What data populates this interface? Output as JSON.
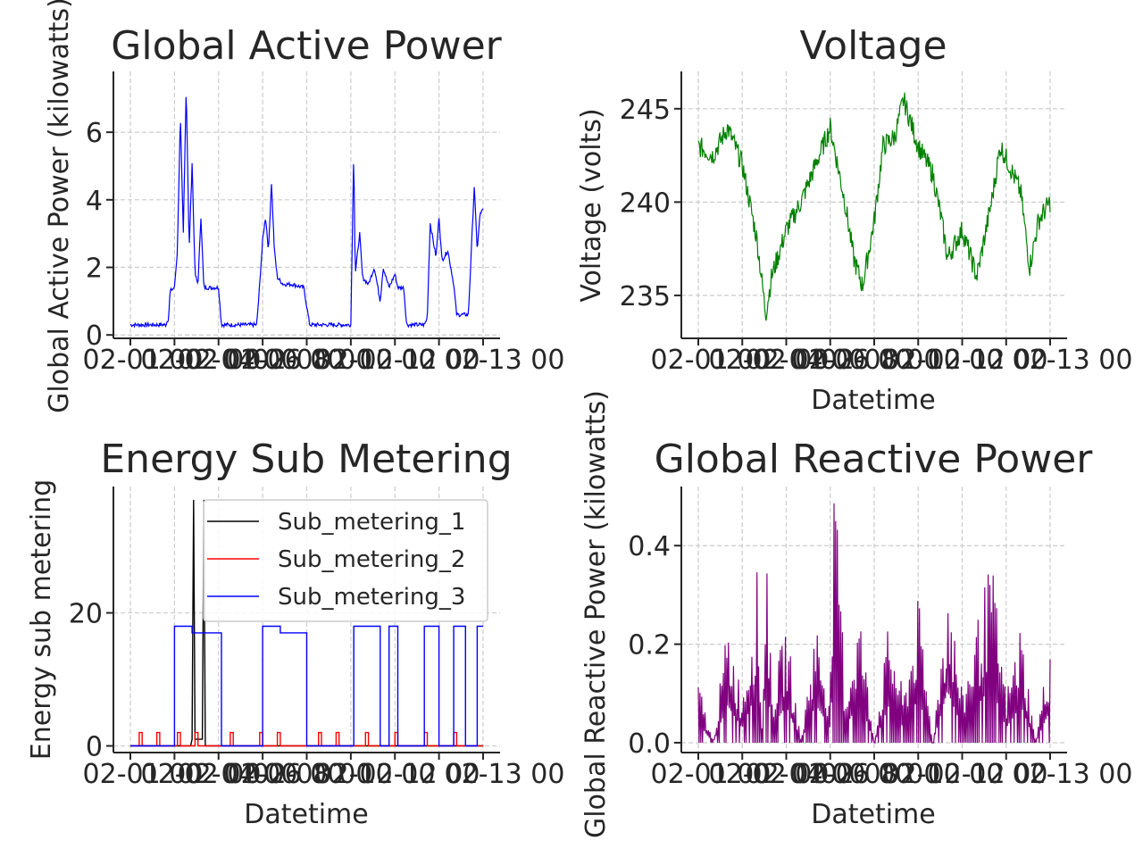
{
  "figure": {
    "background": "#ffffff"
  },
  "chart_data": [
    {
      "id": "gap",
      "type": "line",
      "title": "Global Active Power",
      "xlabel": "",
      "ylabel": "Global Active Power (kilowatts)",
      "x_start": "02-01 00",
      "x_end": "02-13 00",
      "ylim": [
        -0.1,
        7.8
      ],
      "yticks": [
        0,
        2,
        4,
        6
      ],
      "xtick_labels": [
        "02-01 00",
        "02-02 00",
        "02-04 00",
        "02-06 00",
        "02-08 00",
        "02-10 00",
        "02-12 00",
        "02-13 00"
      ],
      "grid": true,
      "series": [
        {
          "color": "#0000ff",
          "keypoints": [
            [
              0,
              0.3
            ],
            [
              1.2,
              0.3
            ],
            [
              1.3,
              0.5
            ],
            [
              1.35,
              1.3
            ],
            [
              1.5,
              1.4
            ],
            [
              1.6,
              2.5
            ],
            [
              1.7,
              6.5
            ],
            [
              1.8,
              3.0
            ],
            [
              1.9,
              7.4
            ],
            [
              2.0,
              2.5
            ],
            [
              2.1,
              5.1
            ],
            [
              2.2,
              1.8
            ],
            [
              2.3,
              1.5
            ],
            [
              2.4,
              3.5
            ],
            [
              2.5,
              1.4
            ],
            [
              3.0,
              1.4
            ],
            [
              3.1,
              0.3
            ],
            [
              4.3,
              0.3
            ],
            [
              4.4,
              1.5
            ],
            [
              4.5,
              2.8
            ],
            [
              4.6,
              3.5
            ],
            [
              4.7,
              2.5
            ],
            [
              4.8,
              4.5
            ],
            [
              4.9,
              2.5
            ],
            [
              5.0,
              1.7
            ],
            [
              5.2,
              1.5
            ],
            [
              5.5,
              1.5
            ],
            [
              5.9,
              1.4
            ],
            [
              6.1,
              0.3
            ],
            [
              7.5,
              0.3
            ],
            [
              7.6,
              5.5
            ],
            [
              7.65,
              1.8
            ],
            [
              7.8,
              3.0
            ],
            [
              7.9,
              1.7
            ],
            [
              8.1,
              1.5
            ],
            [
              8.3,
              2.0
            ],
            [
              8.5,
              1.0
            ],
            [
              8.6,
              2.0
            ],
            [
              8.8,
              1.4
            ],
            [
              9.0,
              1.8
            ],
            [
              9.1,
              1.4
            ],
            [
              9.3,
              1.4
            ],
            [
              9.4,
              0.3
            ],
            [
              10.0,
              0.3
            ],
            [
              10.1,
              0.5
            ],
            [
              10.2,
              3.3
            ],
            [
              10.4,
              2.3
            ],
            [
              10.5,
              3.5
            ],
            [
              10.6,
              2.2
            ],
            [
              10.8,
              2.5
            ],
            [
              11.0,
              1.5
            ],
            [
              11.1,
              0.6
            ],
            [
              11.5,
              0.6
            ],
            [
              11.7,
              4.4
            ],
            [
              11.8,
              2.5
            ],
            [
              11.9,
              3.6
            ],
            [
              12.0,
              3.7
            ]
          ]
        }
      ]
    },
    {
      "id": "voltage",
      "type": "line",
      "title": "Voltage",
      "xlabel": "Datetime",
      "ylabel": "Voltage (volts)",
      "x_start": "02-01 00",
      "x_end": "02-13 00",
      "ylim": [
        232.7,
        247.0
      ],
      "yticks": [
        235,
        240,
        245
      ],
      "xtick_labels": [
        "02-01 00",
        "02-02 00",
        "02-04 00",
        "02-06 00",
        "02-08 00",
        "02-10 00",
        "02-12 00",
        "02-13 00"
      ],
      "grid": true,
      "series": [
        {
          "color": "#008000",
          "keypoints": [
            [
              0,
              243.0
            ],
            [
              0.5,
              242.5
            ],
            [
              1.0,
              244.0
            ],
            [
              1.5,
              242.0
            ],
            [
              2.0,
              238.0
            ],
            [
              2.3,
              234.0
            ],
            [
              2.5,
              236.0
            ],
            [
              3.0,
              238.5
            ],
            [
              3.5,
              240.0
            ],
            [
              4.0,
              242.0
            ],
            [
              4.5,
              244.0
            ],
            [
              5.0,
              240.0
            ],
            [
              5.3,
              237.0
            ],
            [
              5.6,
              235.5
            ],
            [
              6.0,
              239.0
            ],
            [
              6.3,
              243.0
            ],
            [
              6.7,
              243.5
            ],
            [
              7.0,
              245.5
            ],
            [
              7.5,
              243.0
            ],
            [
              8.0,
              241.5
            ],
            [
              8.3,
              239.0
            ],
            [
              8.5,
              237.0
            ],
            [
              9.0,
              238.5
            ],
            [
              9.5,
              236.0
            ],
            [
              10.0,
              240.0
            ],
            [
              10.3,
              243.0
            ],
            [
              10.6,
              242.0
            ],
            [
              11.0,
              240.5
            ],
            [
              11.3,
              236.5
            ],
            [
              11.6,
              239.0
            ],
            [
              12.0,
              240.0
            ]
          ]
        }
      ]
    },
    {
      "id": "sub",
      "type": "line",
      "title": "Energy Sub Metering",
      "xlabel": "Datetime",
      "ylabel": "Energy sub metering",
      "x_start": "02-01 00",
      "x_end": "02-13 00",
      "ylim": [
        -1,
        39
      ],
      "yticks": [
        0,
        20
      ],
      "xtick_labels": [
        "02-01 00",
        "02-02 00",
        "02-04 00",
        "02-06 00",
        "02-08 00",
        "02-10 00",
        "02-12 00",
        "02-13 00"
      ],
      "grid": true,
      "legend": "upper right",
      "series": [
        {
          "name": "Sub_metering_1",
          "color": "#000000",
          "keypoints": [
            [
              0,
              0
            ],
            [
              2.05,
              0
            ],
            [
              2.1,
              1
            ],
            [
              2.15,
              37
            ],
            [
              2.2,
              1
            ],
            [
              2.45,
              1
            ],
            [
              2.5,
              37
            ],
            [
              2.55,
              0
            ],
            [
              12.0,
              0
            ]
          ]
        },
        {
          "name": "Sub_metering_2",
          "color": "#ff0000",
          "keypoints": [
            [
              0,
              0
            ],
            [
              0.3,
              0
            ],
            [
              0.3,
              2
            ],
            [
              0.4,
              2
            ],
            [
              0.4,
              0
            ],
            [
              0.9,
              0
            ],
            [
              0.9,
              2
            ],
            [
              1.0,
              2
            ],
            [
              1.0,
              0
            ],
            [
              1.6,
              0
            ],
            [
              1.6,
              2
            ],
            [
              1.7,
              2
            ],
            [
              1.7,
              0
            ],
            [
              2.2,
              0
            ],
            [
              2.2,
              2
            ],
            [
              2.3,
              2
            ],
            [
              2.3,
              0
            ],
            [
              3.4,
              0
            ],
            [
              3.4,
              2
            ],
            [
              3.5,
              2
            ],
            [
              3.5,
              0
            ],
            [
              4.4,
              0
            ],
            [
              4.4,
              2
            ],
            [
              4.5,
              2
            ],
            [
              4.5,
              0
            ],
            [
              5.0,
              0
            ],
            [
              5.0,
              2
            ],
            [
              5.1,
              2
            ],
            [
              5.1,
              0
            ],
            [
              6.4,
              0
            ],
            [
              6.4,
              2
            ],
            [
              6.5,
              2
            ],
            [
              6.5,
              0
            ],
            [
              7.0,
              0
            ],
            [
              7.0,
              2
            ],
            [
              7.1,
              2
            ],
            [
              7.1,
              0
            ],
            [
              8.0,
              0
            ],
            [
              8.0,
              2
            ],
            [
              8.1,
              2
            ],
            [
              8.1,
              0
            ],
            [
              9.0,
              0
            ],
            [
              9.0,
              2
            ],
            [
              9.1,
              2
            ],
            [
              9.1,
              0
            ],
            [
              10.0,
              0
            ],
            [
              10.0,
              2
            ],
            [
              10.1,
              2
            ],
            [
              10.1,
              0
            ],
            [
              11.0,
              0
            ],
            [
              11.0,
              2
            ],
            [
              11.1,
              2
            ],
            [
              11.1,
              0
            ],
            [
              12.0,
              0
            ]
          ]
        },
        {
          "name": "Sub_metering_3",
          "color": "#0000ff",
          "keypoints": [
            [
              0,
              0
            ],
            [
              1.5,
              0
            ],
            [
              1.5,
              18
            ],
            [
              2.1,
              18
            ],
            [
              2.1,
              17
            ],
            [
              3.1,
              17
            ],
            [
              3.1,
              0
            ],
            [
              4.5,
              0
            ],
            [
              4.5,
              18
            ],
            [
              5.1,
              18
            ],
            [
              5.1,
              17
            ],
            [
              6.0,
              17
            ],
            [
              6.0,
              0
            ],
            [
              7.6,
              0
            ],
            [
              7.6,
              18
            ],
            [
              8.5,
              18
            ],
            [
              8.5,
              0
            ],
            [
              8.8,
              0
            ],
            [
              8.8,
              18
            ],
            [
              9.1,
              18
            ],
            [
              9.1,
              0
            ],
            [
              10.0,
              0
            ],
            [
              10.0,
              18
            ],
            [
              10.5,
              18
            ],
            [
              10.5,
              0
            ],
            [
              11.0,
              0
            ],
            [
              11.0,
              18
            ],
            [
              11.4,
              18
            ],
            [
              11.4,
              0
            ],
            [
              11.8,
              0
            ],
            [
              11.8,
              18
            ],
            [
              12.0,
              18
            ]
          ]
        }
      ]
    },
    {
      "id": "grp",
      "type": "line",
      "title": "Global Reactive Power",
      "xlabel": "Datetime",
      "ylabel": "Global Reactive Power (kilowatts)",
      "x_start": "02-01 00",
      "x_end": "02-13 00",
      "ylim": [
        -0.02,
        0.52
      ],
      "yticks": [
        0.0,
        0.2,
        0.4
      ],
      "ytick_labels": [
        "0.0",
        "0.2",
        "0.4"
      ],
      "xtick_labels": [
        "02-01 00",
        "02-02 00",
        "02-04 00",
        "02-06 00",
        "02-08 00",
        "02-10 00",
        "02-12 00",
        "02-13 00"
      ],
      "grid": true,
      "series": [
        {
          "color": "#800080",
          "keypoints": [
            [
              0,
              0.13
            ],
            [
              0.5,
              0.0
            ],
            [
              1.0,
              0.25
            ],
            [
              1.5,
              0.1
            ],
            [
              2.0,
              0.35
            ],
            [
              2.2,
              0.0
            ],
            [
              2.3,
              0.5
            ],
            [
              2.5,
              0.1
            ],
            [
              3.0,
              0.25
            ],
            [
              3.5,
              0.0
            ],
            [
              4.0,
              0.26
            ],
            [
              4.5,
              0.1
            ],
            [
              4.6,
              0.5
            ],
            [
              4.8,
              0.43
            ],
            [
              5.0,
              0.1
            ],
            [
              5.5,
              0.28
            ],
            [
              6.0,
              0.0
            ],
            [
              6.5,
              0.25
            ],
            [
              7.0,
              0.1
            ],
            [
              7.5,
              0.3
            ],
            [
              8.0,
              0.0
            ],
            [
              8.5,
              0.35
            ],
            [
              9.0,
              0.1
            ],
            [
              9.5,
              0.25
            ],
            [
              10.0,
              0.38
            ],
            [
              10.5,
              0.1
            ],
            [
              11.0,
              0.25
            ],
            [
              11.5,
              0.0
            ],
            [
              12.0,
              0.22
            ]
          ]
        }
      ]
    }
  ]
}
